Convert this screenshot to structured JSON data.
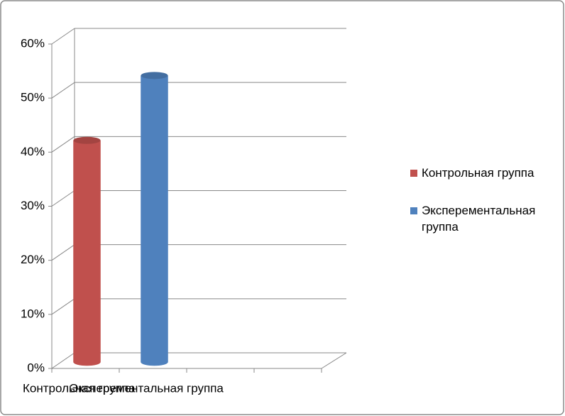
{
  "chart_data": {
    "type": "bar3d",
    "categories": [
      "Контрольная группа",
      "Эксперементальная группа",
      null,
      null
    ],
    "series": [
      {
        "name": "Контрольная группа",
        "color": "#c0504d",
        "values": [
          41,
          null,
          null,
          null
        ]
      },
      {
        "name": "Эксперементальная группа",
        "color": "#4f81bd",
        "values": [
          null,
          53,
          null,
          null
        ]
      }
    ],
    "ylim": [
      0,
      60
    ],
    "yticks": [
      {
        "value": 0,
        "label": "0%"
      },
      {
        "value": 10,
        "label": "10%"
      },
      {
        "value": 20,
        "label": "20%"
      },
      {
        "value": 30,
        "label": "30%"
      },
      {
        "value": 40,
        "label": "40%"
      },
      {
        "value": 50,
        "label": "50%"
      },
      {
        "value": 60,
        "label": "60%"
      }
    ],
    "grid": true,
    "legend": "right"
  }
}
